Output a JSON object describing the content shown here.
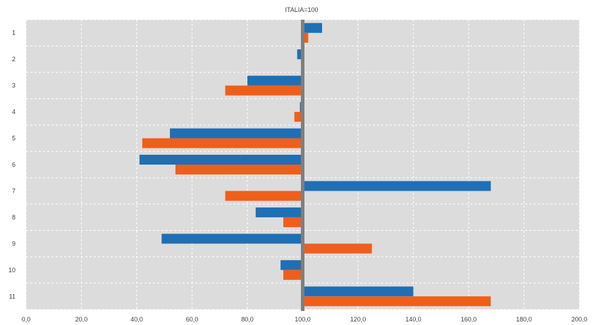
{
  "chart_data": {
    "type": "bar",
    "orientation": "horizontal",
    "title": "ITALIA=100",
    "categories": [
      "1",
      "2",
      "3",
      "4",
      "5",
      "6",
      "7",
      "8",
      "9",
      "10",
      "11"
    ],
    "series": [
      {
        "values": [
          107,
          98,
          80,
          99,
          52,
          41,
          168,
          83,
          49,
          92,
          140
        ],
        "color": "#1f6fb5"
      },
      {
        "values": [
          102,
          100,
          72,
          97,
          42,
          54,
          72,
          93,
          125,
          93,
          168
        ],
        "color": "#ee5f1b"
      }
    ],
    "xlim": [
      0,
      200
    ],
    "xticks": [
      "0,0",
      "20,0",
      "40,0",
      "60,0",
      "80,0",
      "100,0",
      "120,0",
      "140,0",
      "160,0",
      "180,0",
      "200,0"
    ],
    "baseline": 100,
    "baseline_color": "#7f7f7f",
    "plot_background": "#dcdcdc",
    "grid": true,
    "legend": "none"
  }
}
